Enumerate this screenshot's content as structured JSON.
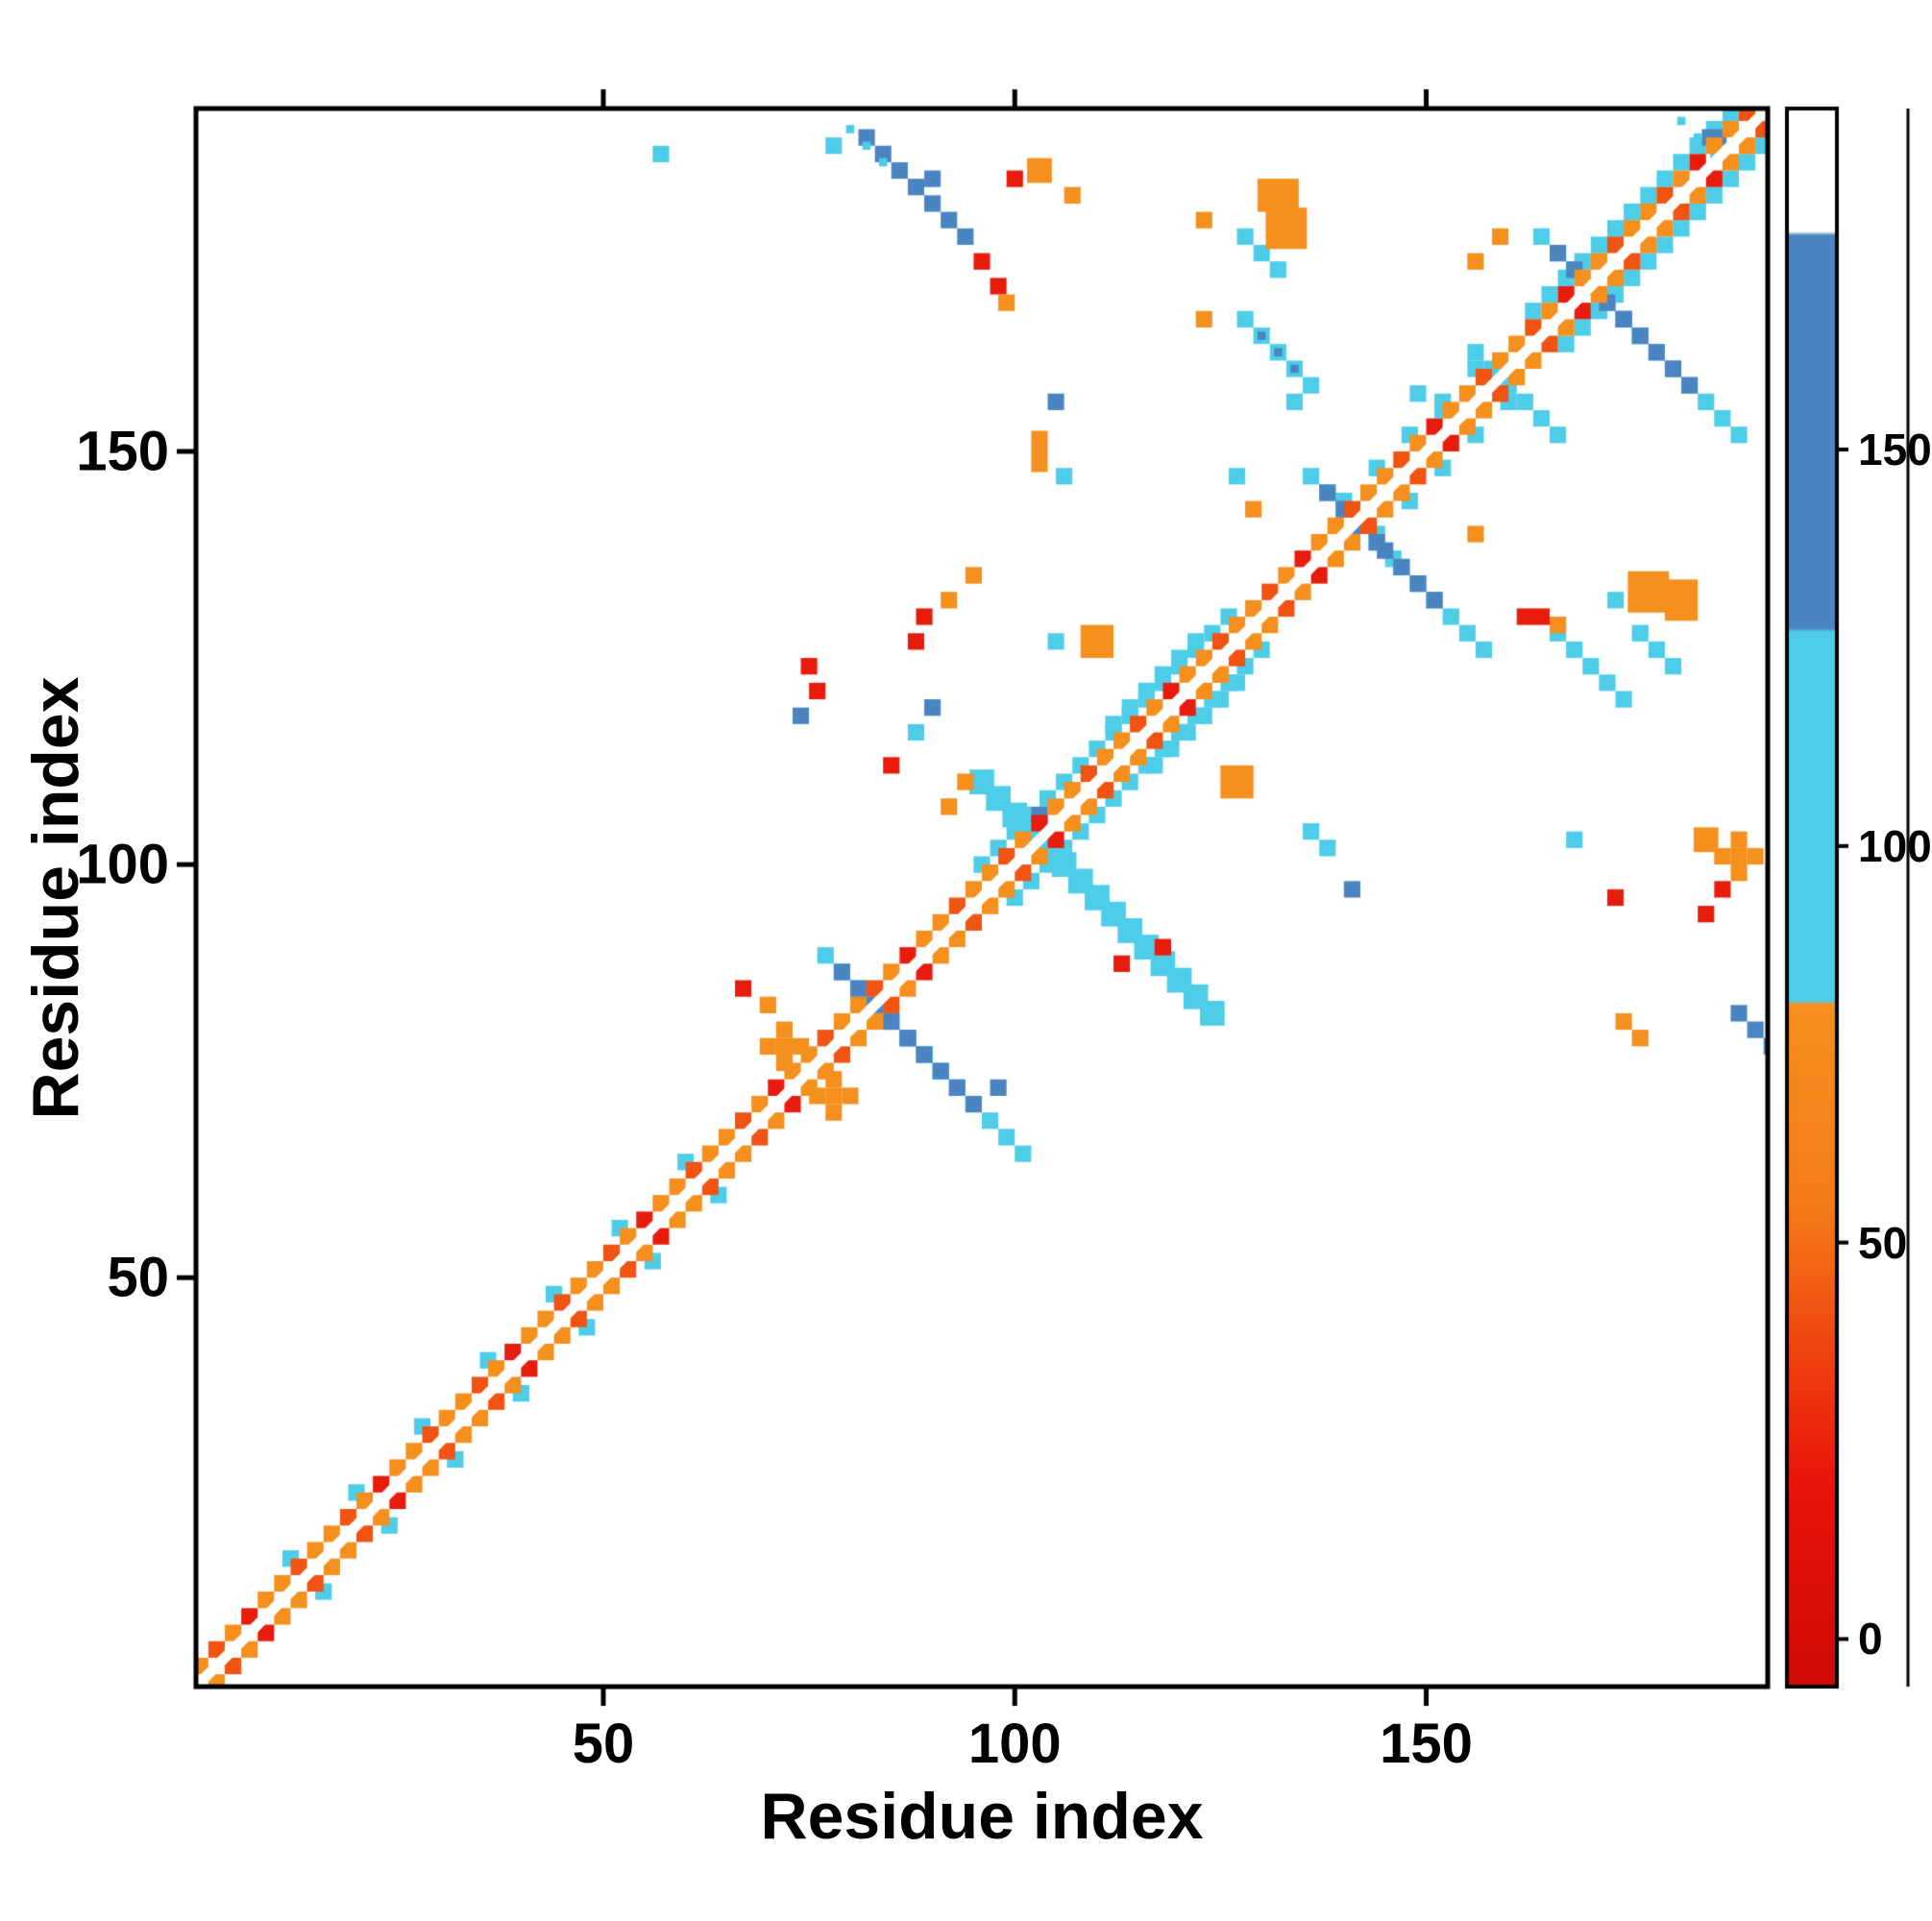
{
  "chart_data": {
    "type": "heatmap",
    "title": "",
    "subtitle": "",
    "xlabel": "Residue index",
    "ylabel": "Residue index",
    "x_range": [
      0.5,
      191.5
    ],
    "y_range": [
      0.5,
      191.5
    ],
    "x_ticks": [
      50,
      100,
      150
    ],
    "y_ticks": [
      50,
      100,
      150
    ],
    "grid": false,
    "background": "#ffffff",
    "frame_color": "#000000",
    "palette": {
      "red": "#e81c0d",
      "deepred": "#cf0a05",
      "redorange": "#f05312",
      "orange": "#f58f1e",
      "cyan": "#4ecde8",
      "blue": "#4b85c1",
      "white": "#ffffff"
    },
    "colorbar": {
      "range": [
        -6,
        193
      ],
      "ticks": [
        0,
        50,
        100,
        150
      ],
      "stops": [
        {
          "v": -6,
          "c": "#cf0a05"
        },
        {
          "v": 20,
          "c": "#ea150b"
        },
        {
          "v": 40,
          "c": "#f04f10"
        },
        {
          "v": 55,
          "c": "#f57c19"
        },
        {
          "v": 80,
          "c": "#f6901e"
        },
        {
          "v": 80.5,
          "c": "#4ecde8"
        },
        {
          "v": 127,
          "c": "#4ecde8"
        },
        {
          "v": 127.5,
          "c": "#4b85c1"
        },
        {
          "v": 177,
          "c": "#4b85c1"
        },
        {
          "v": 177.5,
          "c": "#ffffff"
        },
        {
          "v": 193,
          "c": "#ffffff"
        }
      ]
    },
    "diagonal": {
      "start": 1,
      "end": 191,
      "cycle": [
        "orange",
        "redorange",
        "orange",
        "red",
        "orange",
        "orange",
        "redorange",
        "orange"
      ],
      "flank_color": "cyan",
      "flank_offset": 4,
      "flanks": [
        [
          12,
          60,
          8
        ],
        [
          96,
          126,
          2
        ],
        [
          140,
          158,
          4
        ],
        [
          163,
          190,
          2
        ]
      ]
    },
    "features": [
      {
        "t": "anti",
        "x": 82,
        "y": 188,
        "n": 7,
        "w": 2,
        "c": "blue"
      },
      {
        "t": "anti",
        "x": 80,
        "y": 189,
        "n": 3,
        "w": 1,
        "c": "cyan",
        "m": 0
      },
      {
        "t": "dot",
        "x": 78,
        "y": 187,
        "c": "cyan",
        "m": 0
      },
      {
        "t": "dot",
        "x": 57,
        "y": 186,
        "c": "cyan",
        "m": 0
      },
      {
        "t": "dot",
        "x": 96,
        "y": 173,
        "c": "red"
      },
      {
        "t": "dot",
        "x": 98,
        "y": 170,
        "c": "red",
        "m": 0
      },
      {
        "t": "dot",
        "x": 99,
        "y": 168,
        "c": "orange",
        "m": 0
      },
      {
        "t": "blob",
        "x": 103,
        "y": 184,
        "w": 3,
        "h": 3,
        "c": "orange"
      },
      {
        "t": "dot",
        "x": 107,
        "y": 181,
        "c": "orange",
        "m": 0
      },
      {
        "t": "dot",
        "x": 100,
        "y": 183,
        "c": "red",
        "m": 0
      },
      {
        "t": "dot",
        "x": 90,
        "y": 183,
        "c": "blue",
        "m": 0
      },
      {
        "t": "blob",
        "x": 132,
        "y": 181,
        "w": 5,
        "h": 4,
        "c": "orange"
      },
      {
        "t": "anti",
        "x": 128,
        "y": 176,
        "n": 3,
        "w": 2,
        "c": "cyan"
      },
      {
        "t": "dot",
        "x": 123,
        "y": 178,
        "c": "orange",
        "m": 0
      },
      {
        "t": "anti",
        "x": 128,
        "y": 166,
        "n": 5,
        "w": 2,
        "c": "cyan"
      },
      {
        "t": "anti",
        "x": 130,
        "y": 164,
        "n": 3,
        "w": 1,
        "c": "blue",
        "m": 0
      },
      {
        "t": "dot",
        "x": 134,
        "y": 156,
        "c": "cyan",
        "m": 0
      },
      {
        "t": "dot",
        "x": 123,
        "y": 166,
        "c": "orange",
        "m": 0
      },
      {
        "t": "anti",
        "x": 164,
        "y": 176,
        "n": 7,
        "w": 2,
        "c": "cyan"
      },
      {
        "t": "anti",
        "x": 166,
        "y": 174,
        "n": 5,
        "w": 2,
        "c": "blue"
      },
      {
        "t": "dot",
        "x": 159,
        "y": 176,
        "c": "orange",
        "m": 0
      },
      {
        "t": "dot",
        "x": 156,
        "y": 173,
        "c": "orange",
        "m": 0
      },
      {
        "t": "anti",
        "x": 156,
        "y": 162,
        "n": 3,
        "w": 2,
        "c": "cyan"
      },
      {
        "t": "anti",
        "x": 136,
        "y": 147,
        "n": 6,
        "w": 2,
        "c": "cyan"
      },
      {
        "t": "anti",
        "x": 138,
        "y": 145,
        "n": 4,
        "w": 2,
        "c": "blue"
      },
      {
        "t": "dot",
        "x": 129,
        "y": 143,
        "c": "orange",
        "m": 0
      },
      {
        "t": "dot",
        "x": 127,
        "y": 147,
        "c": "cyan",
        "m": 0
      },
      {
        "t": "dot",
        "x": 156,
        "y": 140,
        "c": "orange",
        "m": 0
      },
      {
        "t": "blob",
        "x": 177,
        "y": 133,
        "w": 5,
        "h": 5,
        "c": "orange"
      },
      {
        "t": "dot",
        "x": 173,
        "y": 132,
        "c": "cyan",
        "m": 0
      },
      {
        "t": "blob",
        "x": 163,
        "y": 130,
        "w": 4,
        "h": 2,
        "c": "red",
        "m": 0
      },
      {
        "t": "dot",
        "x": 166,
        "y": 129,
        "c": "orange",
        "m": 0
      },
      {
        "t": "anti",
        "x": 96,
        "y": 110,
        "n": 8,
        "w": 3,
        "c": "cyan"
      },
      {
        "t": "dot",
        "x": 103,
        "y": 106,
        "c": "blue",
        "m": 0
      },
      {
        "t": "dot",
        "x": 94,
        "y": 110,
        "c": "orange",
        "m": 0
      },
      {
        "t": "dot",
        "x": 92,
        "y": 107,
        "c": "orange",
        "m": 0
      },
      {
        "t": "para",
        "x": 112,
        "y": 117,
        "n": 6,
        "w": 2,
        "c": "cyan"
      },
      {
        "t": "dot",
        "x": 85,
        "y": 112,
        "c": "red",
        "m": 0
      },
      {
        "t": "dot",
        "x": 88,
        "y": 116,
        "c": "cyan",
        "m": 0
      },
      {
        "t": "dot",
        "x": 90,
        "y": 119,
        "c": "blue",
        "m": 0
      },
      {
        "t": "anti",
        "x": 77,
        "y": 89,
        "n": 7,
        "w": 2,
        "c": "cyan"
      },
      {
        "t": "anti",
        "x": 79,
        "y": 87,
        "n": 5,
        "w": 2,
        "c": "blue"
      },
      {
        "t": "plus",
        "x": 72,
        "y": 78,
        "c": "orange"
      },
      {
        "t": "dot",
        "x": 67,
        "y": 85,
        "c": "red",
        "m": 0
      },
      {
        "t": "dot",
        "x": 70,
        "y": 83,
        "c": "orange",
        "m": 0
      },
      {
        "t": "dot",
        "x": 75,
        "y": 124,
        "c": "red",
        "m": 0
      },
      {
        "t": "dot",
        "x": 76,
        "y": 121,
        "c": "red",
        "m": 0
      },
      {
        "t": "dot",
        "x": 74,
        "y": 118,
        "c": "blue",
        "m": 0
      },
      {
        "t": "blob",
        "x": 92,
        "y": 132,
        "w": 2,
        "h": 2,
        "c": "orange",
        "m": 0
      },
      {
        "t": "dot",
        "x": 95,
        "y": 135,
        "c": "orange",
        "m": 0
      },
      {
        "t": "dot",
        "x": 89,
        "y": 130,
        "c": "red",
        "m": 0
      },
      {
        "t": "blob",
        "x": 110,
        "y": 127,
        "w": 4,
        "h": 4,
        "c": "orange"
      },
      {
        "t": "dot",
        "x": 105,
        "y": 127,
        "c": "cyan",
        "m": 0
      },
      {
        "t": "blob",
        "x": 103,
        "y": 150,
        "w": 2,
        "h": 5,
        "c": "orange",
        "m": 0
      },
      {
        "t": "dot",
        "x": 106,
        "y": 147,
        "c": "cyan",
        "m": 0
      },
      {
        "t": "dot",
        "x": 105,
        "y": 156,
        "c": "blue",
        "m": 0
      },
      {
        "t": "dot",
        "x": 149,
        "y": 157,
        "c": "cyan",
        "m": 0
      },
      {
        "t": "dot",
        "x": 152,
        "y": 155,
        "c": "cyan",
        "m": 0
      },
      {
        "t": "blob",
        "x": 185,
        "y": 188,
        "w": 3,
        "h": 2,
        "c": "blue",
        "m": 0
      },
      {
        "t": "anti",
        "x": 181,
        "y": 190,
        "n": 3,
        "w": 1,
        "c": "cyan",
        "m": 0
      },
      {
        "t": "plus",
        "x": 188,
        "y": 101,
        "c": "orange",
        "m": 0
      },
      {
        "t": "dot",
        "x": 186,
        "y": 97,
        "c": "red",
        "m": 0
      },
      {
        "t": "dot",
        "x": 184,
        "y": 94,
        "c": "red",
        "m": 0
      },
      {
        "t": "dot",
        "x": 168,
        "y": 103,
        "c": "cyan",
        "m": 0
      },
      {
        "t": "dot",
        "x": 176,
        "y": 79,
        "c": "orange",
        "m": 0
      },
      {
        "t": "dot",
        "x": 174,
        "y": 81,
        "c": "orange",
        "m": 0
      },
      {
        "t": "dot",
        "x": 98,
        "y": 73,
        "c": "blue",
        "m": 0
      },
      {
        "t": "dot",
        "x": 88,
        "y": 127,
        "c": "red",
        "m": 0
      },
      {
        "t": "dot",
        "x": 118,
        "y": 90,
        "c": "red",
        "m": 0
      },
      {
        "t": "dot",
        "x": 113,
        "y": 88,
        "c": "red",
        "m": 0
      },
      {
        "t": "dot",
        "x": 136,
        "y": 104,
        "c": "cyan",
        "m": 0
      },
      {
        "t": "dot",
        "x": 138,
        "y": 102,
        "c": "cyan",
        "m": 0
      },
      {
        "t": "dot",
        "x": 141,
        "y": 97,
        "c": "blue",
        "m": 0
      }
    ]
  }
}
